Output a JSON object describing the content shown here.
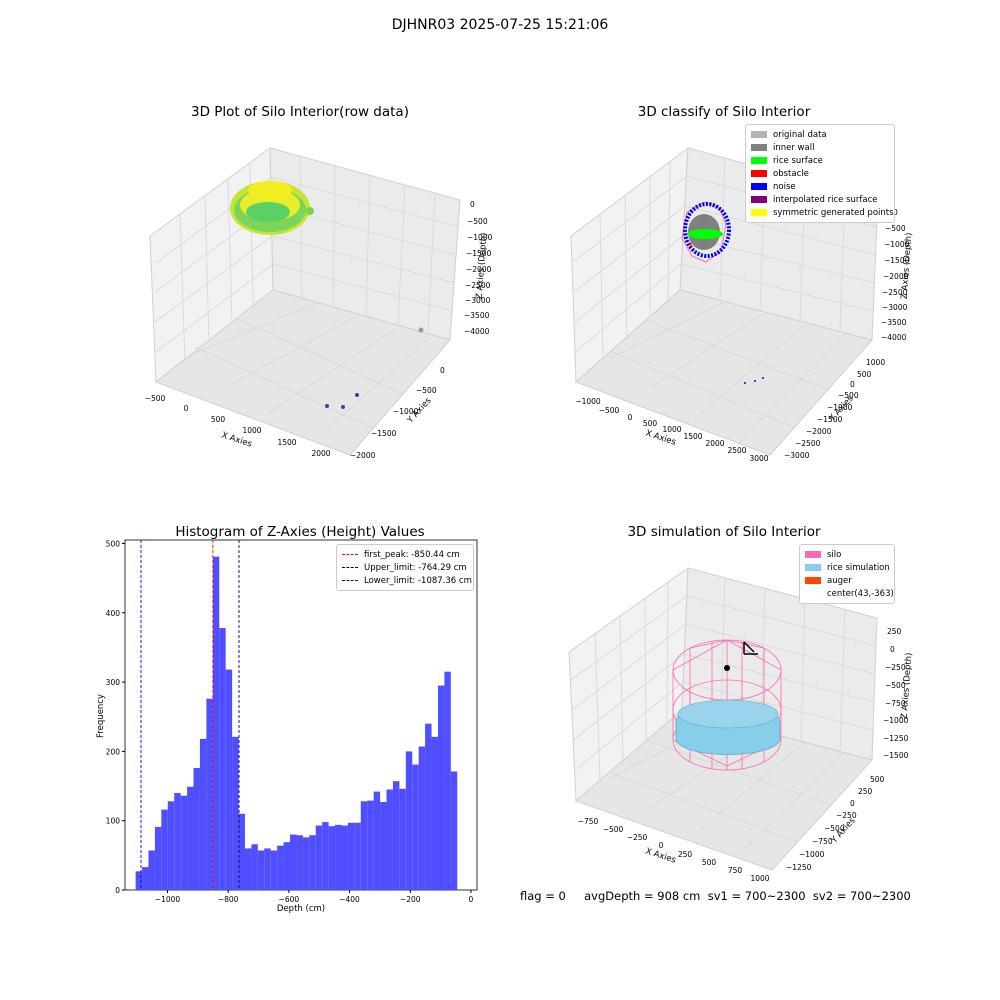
{
  "suptitle": "DJHNR03 2025-07-25 15:21:06",
  "status_line": "flag = 0     avgDepth = 908 cm  sv1 = 700~2300  sv2 = 700~2300",
  "colors": {
    "original": "#b3b3b3",
    "inner_wall": "#808080",
    "rice_surface": "#00ff00",
    "obstacle": "#ff0000",
    "noise": "#0000ff",
    "interpolated": "#800080",
    "symmetric": "#ffff00",
    "silo": "#ff69b4",
    "rice_sim": "#87ceeb",
    "auger": "#ff4500",
    "hist_bar": "#4f4fff"
  },
  "chart_data": [
    {
      "type": "scatter",
      "title": "3D Plot of Silo Interior(row data)",
      "xlabel": "X Axies",
      "ylabel": "Y Axies",
      "zlabel": "Z Axies (Depth)",
      "x_ticks": [
        "−500",
        "0",
        "500",
        "1000",
        "1500",
        "2000"
      ],
      "y_ticks": [
        "0",
        "−500",
        "−1000",
        "−1500",
        "−2000"
      ],
      "z_ticks": [
        "0",
        "−500",
        "−1000",
        "−1500",
        "−2000",
        "−2500",
        "−3000",
        "−3500",
        "−4000"
      ],
      "grid": true
    },
    {
      "type": "scatter",
      "title": "3D classify of Silo Interior",
      "xlabel": "X Axies",
      "ylabel": "Y Axies",
      "zlabel": "Z Axies (Depth)",
      "x_ticks": [
        "−1000",
        "−500",
        "0",
        "500",
        "1000",
        "1500",
        "2000",
        "2500",
        "3000"
      ],
      "y_ticks": [
        "1000",
        "500",
        "0",
        "−500",
        "−1000",
        "−1500",
        "−2000",
        "−2500",
        "−3000"
      ],
      "z_ticks": [
        "0",
        "−500",
        "−1000",
        "−1500",
        "−2000",
        "−2500",
        "−3000",
        "−3500",
        "−4000"
      ],
      "legend": [
        "original data",
        "inner wall",
        "rice surface",
        "obstacle",
        "noise",
        "interpolated rice surface",
        "symmetric generated points"
      ],
      "legend_position": "top-right",
      "grid": true
    },
    {
      "type": "bar",
      "title": "Histogram of Z-Axies (Height) Values",
      "xlabel": "Depth (cm)",
      "ylabel": "Frequency",
      "bin_start": -1105,
      "bin_width": 21.2,
      "values": [
        27,
        33,
        57,
        91,
        116,
        128,
        140,
        136,
        149,
        176,
        218,
        276,
        481,
        378,
        318,
        221,
        110,
        60,
        66,
        57,
        60,
        57,
        64,
        69,
        80,
        79,
        76,
        79,
        93,
        98,
        92,
        94,
        93,
        97,
        97,
        128,
        129,
        142,
        127,
        145,
        157,
        146,
        200,
        181,
        207,
        240,
        221,
        295,
        315,
        171
      ],
      "xlim": [
        -1140,
        20
      ],
      "ylim": [
        0,
        505
      ],
      "x_ticks": [
        -1000,
        -800,
        -600,
        -400,
        -200,
        0
      ],
      "y_ticks": [
        0,
        100,
        200,
        300,
        400,
        500
      ],
      "vlines": [
        {
          "label": "first_peak: -850.44 cm",
          "x": -850.44,
          "color": "#ff0000"
        },
        {
          "label": "Upper_limit: -764.29 cm",
          "x": -764.29,
          "color": "#000080"
        },
        {
          "label": "Lower_limit: -1087.36 cm",
          "x": -1087.36,
          "color": "#0000ff"
        }
      ],
      "legend_position": "top-right",
      "grid": false
    },
    {
      "type": "scatter",
      "title": "3D simulation of Silo Interior",
      "xlabel": "X Axies",
      "ylabel": "Y Axies",
      "zlabel": "Z Axies (Depth)",
      "x_ticks": [
        "−750",
        "−500",
        "−250",
        "0",
        "250",
        "500",
        "750",
        "1000"
      ],
      "y_ticks": [
        "500",
        "250",
        "0",
        "−250",
        "−500",
        "−750",
        "−1000",
        "−1250"
      ],
      "z_ticks": [
        "250",
        "0",
        "−250",
        "−500",
        "−750",
        "−1000",
        "−1250",
        "−1500"
      ],
      "legend": [
        "silo",
        "rice simulation",
        "auger",
        "center(43,-363)"
      ],
      "legend_position": "top-right",
      "grid": true
    }
  ]
}
